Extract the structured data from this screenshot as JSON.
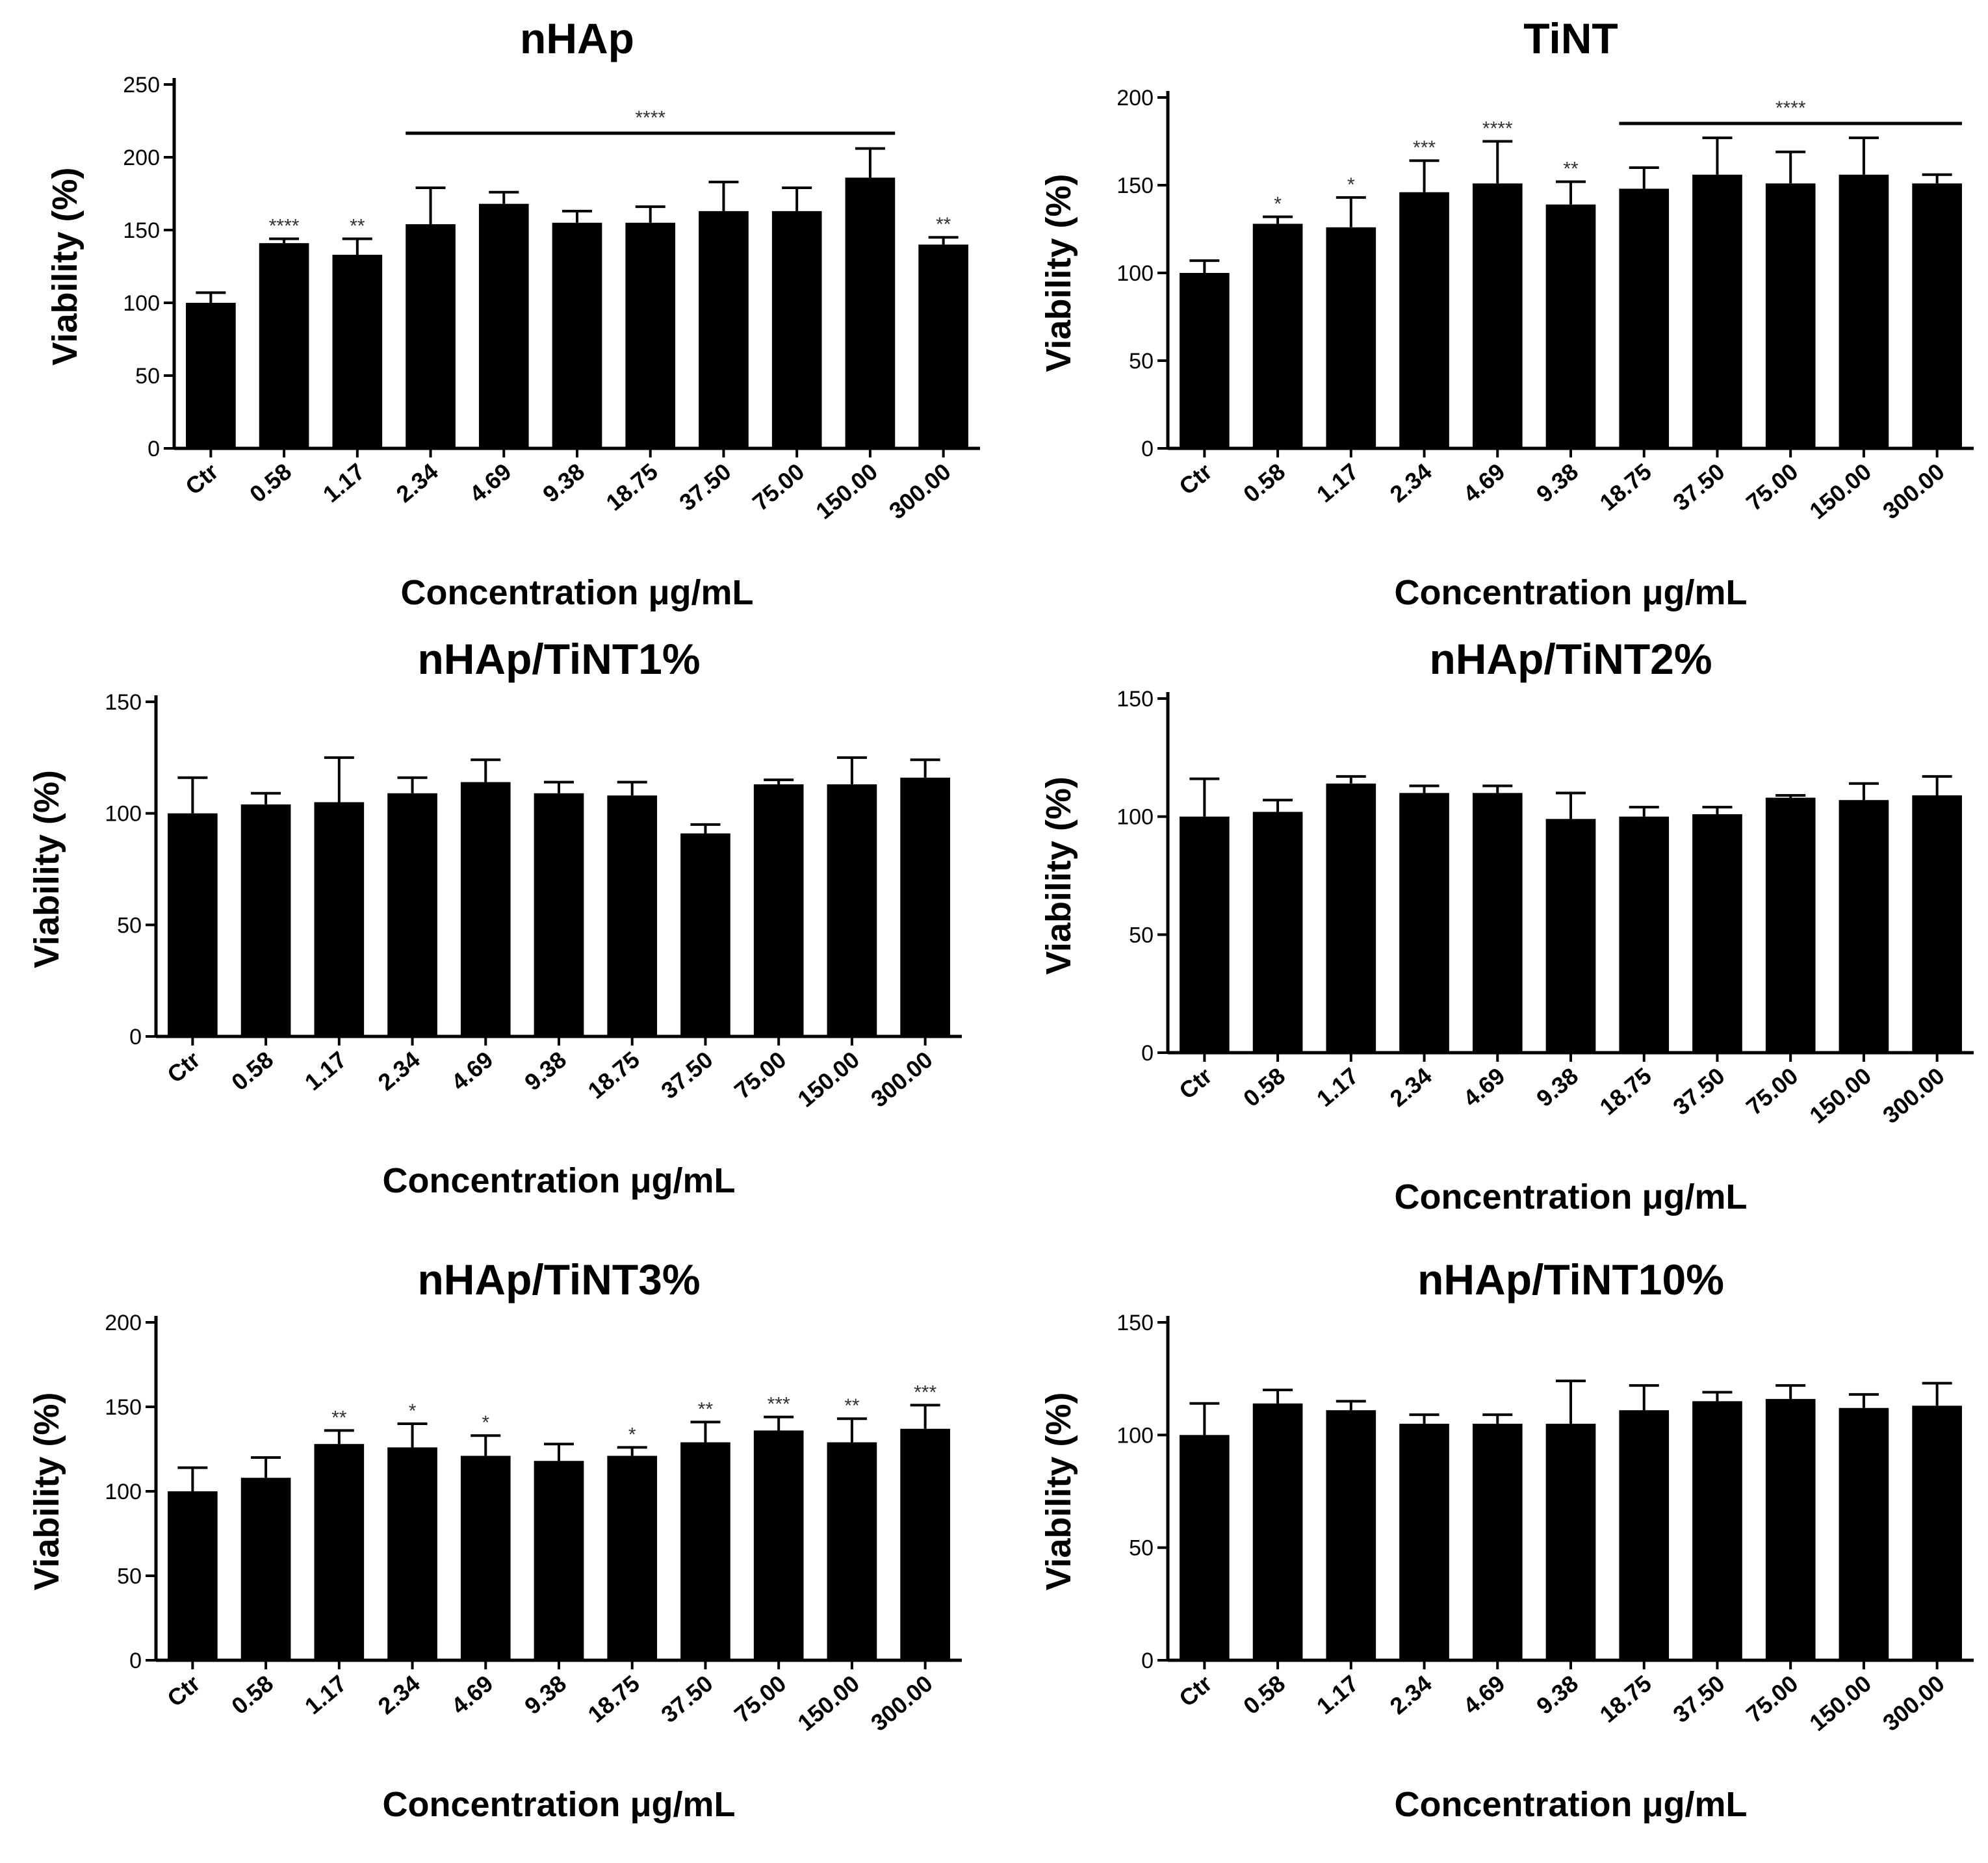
{
  "chart_data": [
    {
      "type": "bar",
      "title": "nHAp",
      "xlabel": "Concentration μg/mL",
      "ylabel": "Viability (%)",
      "categories": [
        "Ctr",
        "0.58",
        "1.17",
        "2.34",
        "4.69",
        "9.38",
        "18.75",
        "37.50",
        "75.00",
        "150.00",
        "300.00"
      ],
      "values": [
        100,
        141,
        133,
        154,
        168,
        155,
        155,
        163,
        163,
        186,
        140
      ],
      "errors": [
        7,
        3,
        11,
        25,
        8,
        8,
        11,
        20,
        16,
        20,
        5
      ],
      "significance": [
        "",
        "****",
        "**",
        "",
        "",
        "",
        "",
        "",
        "",
        "",
        "**"
      ],
      "bracket": {
        "from": "2.34",
        "to": "150.00",
        "label": "****"
      },
      "ylim": [
        0,
        250
      ],
      "yticks": [
        0,
        50,
        100,
        150,
        200,
        250
      ],
      "color": "#000000"
    },
    {
      "type": "bar",
      "title": "TiNT",
      "xlabel": "Concentration μg/mL",
      "ylabel": "Viability (%)",
      "categories": [
        "Ctr",
        "0.58",
        "1.17",
        "2.34",
        "4.69",
        "9.38",
        "18.75",
        "37.50",
        "75.00",
        "150.00",
        "300.00"
      ],
      "values": [
        100,
        128,
        126,
        146,
        151,
        139,
        148,
        156,
        151,
        156,
        151
      ],
      "errors": [
        7,
        4,
        17,
        18,
        24,
        13,
        12,
        21,
        18,
        21,
        5
      ],
      "significance": [
        "",
        "*",
        "*",
        "***",
        "****",
        "**",
        "",
        "",
        "",
        "",
        ""
      ],
      "bracket": {
        "from": "18.75",
        "to": "300.00",
        "label": "****"
      },
      "ylim": [
        0,
        200
      ],
      "yticks": [
        0,
        50,
        100,
        150,
        200
      ],
      "color": "#000000"
    },
    {
      "type": "bar",
      "title": "nHAp/TiNT1%",
      "xlabel": "Concentration μg/mL",
      "ylabel": "Viability (%)",
      "categories": [
        "Ctr",
        "0.58",
        "1.17",
        "2.34",
        "4.69",
        "9.38",
        "18.75",
        "37.50",
        "75.00",
        "150.00",
        "300.00"
      ],
      "values": [
        100,
        104,
        105,
        109,
        114,
        109,
        108,
        91,
        113,
        113,
        116
      ],
      "errors": [
        16,
        5,
        20,
        7,
        10,
        5,
        6,
        4,
        2,
        12,
        8
      ],
      "significance": [
        "",
        "",
        "",
        "",
        "",
        "",
        "",
        "",
        "",
        "",
        ""
      ],
      "bracket": null,
      "ylim": [
        0,
        150
      ],
      "yticks": [
        0,
        50,
        100,
        150
      ],
      "color": "#000000"
    },
    {
      "type": "bar",
      "title": "nHAp/TiNT2%",
      "xlabel": "Concentration μg/mL",
      "ylabel": "Viability (%)",
      "categories": [
        "Ctr",
        "0.58",
        "1.17",
        "2.34",
        "4.69",
        "9.38",
        "18.75",
        "37.50",
        "75.00",
        "150.00",
        "300.00"
      ],
      "values": [
        100,
        102,
        114,
        110,
        110,
        99,
        100,
        101,
        108,
        107,
        109
      ],
      "errors": [
        16,
        5,
        3,
        3,
        3,
        11,
        4,
        3,
        1,
        7,
        8
      ],
      "significance": [
        "",
        "",
        "",
        "",
        "",
        "",
        "",
        "",
        "",
        "",
        ""
      ],
      "bracket": null,
      "ylim": [
        0,
        150
      ],
      "yticks": [
        0,
        50,
        100,
        150
      ],
      "color": "#000000"
    },
    {
      "type": "bar",
      "title": "nHAp/TiNT3%",
      "xlabel": "Concentration μg/mL",
      "ylabel": "Viability (%)",
      "categories": [
        "Ctr",
        "0.58",
        "1.17",
        "2.34",
        "4.69",
        "9.38",
        "18.75",
        "37.50",
        "75.00",
        "150.00",
        "300.00"
      ],
      "values": [
        100,
        108,
        128,
        126,
        121,
        118,
        121,
        129,
        136,
        129,
        137
      ],
      "errors": [
        14,
        12,
        8,
        14,
        12,
        10,
        5,
        12,
        8,
        14,
        14
      ],
      "significance": [
        "",
        "",
        "**",
        "*",
        "*",
        "",
        "*",
        "**",
        "***",
        "**",
        "***"
      ],
      "bracket": null,
      "ylim": [
        0,
        200
      ],
      "yticks": [
        0,
        50,
        100,
        150,
        200
      ],
      "color": "#000000"
    },
    {
      "type": "bar",
      "title": "nHAp/TiNT10%",
      "xlabel": "Concentration μg/mL",
      "ylabel": "Viability (%)",
      "categories": [
        "Ctr",
        "0.58",
        "1.17",
        "2.34",
        "4.69",
        "9.38",
        "18.75",
        "37.50",
        "75.00",
        "150.00",
        "300.00"
      ],
      "values": [
        100,
        114,
        111,
        105,
        105,
        105,
        111,
        115,
        116,
        112,
        113
      ],
      "errors": [
        14,
        6,
        4,
        4,
        4,
        19,
        11,
        4,
        6,
        6,
        10
      ],
      "significance": [
        "",
        "",
        "",
        "",
        "",
        "",
        "",
        "",
        "",
        "",
        ""
      ],
      "bracket": null,
      "ylim": [
        0,
        150
      ],
      "yticks": [
        0,
        50,
        100,
        150
      ],
      "color": "#000000"
    }
  ]
}
